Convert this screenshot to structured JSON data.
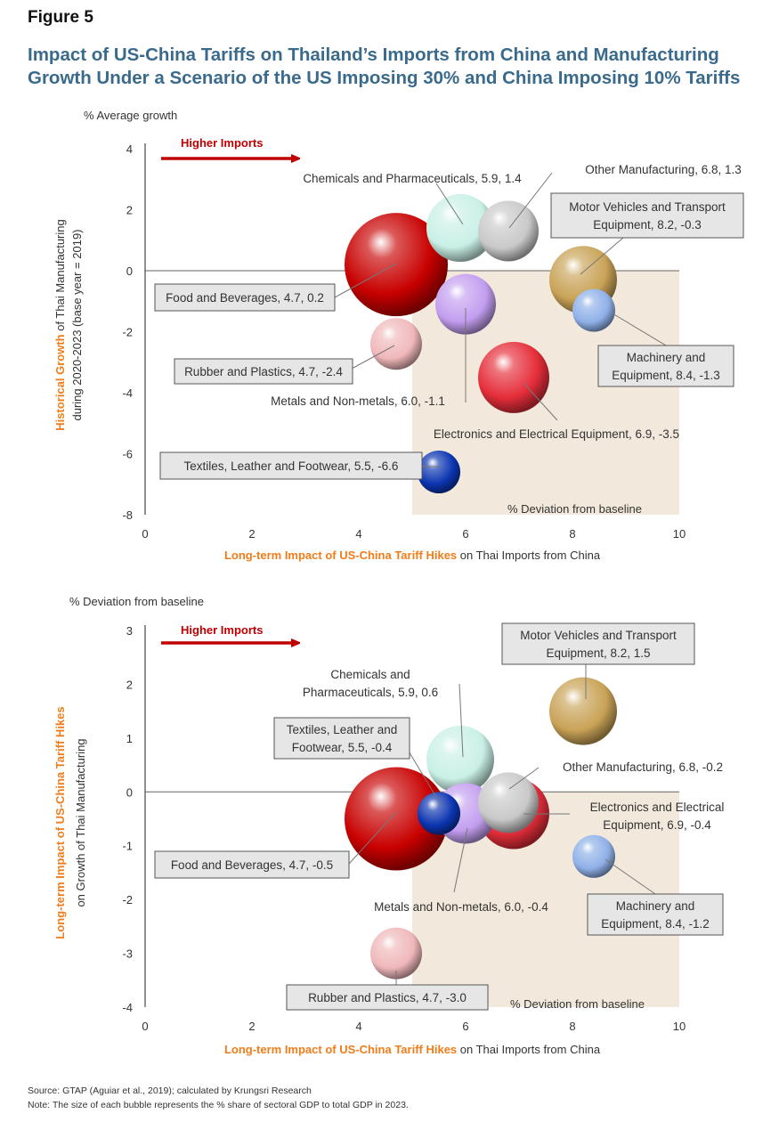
{
  "figure_label": "Figure 5",
  "title_line1": "Impact of US-China Tariffs on Thailand’s Imports from China and Manufacturing",
  "title_line2": "Growth Under a Scenario of the US Imposing 30% and China Imposing 10% Tariffs",
  "colors": {
    "title": "#3a6a8c",
    "orange_label": "#f07d1a",
    "arrow": "#c00000",
    "shade": "#f2e8dc"
  },
  "chart_data": [
    {
      "type": "scatter",
      "subtype": "bubble",
      "unit_label": "% Average growth",
      "arrow_label": "Higher Imports",
      "shade_label": "% Deviation from baseline",
      "xlabel_bold": "Long-term Impact of US-China Tariff Hikes",
      "xlabel_rest": " on Thai Imports from China",
      "ylabel_line1_bold": "Historical Growth",
      "ylabel_line1_rest": " of Thai Manufacturing",
      "ylabel_line2": "during 2020-2023  (base year = 2019)",
      "xlim": [
        0,
        10
      ],
      "ylim": [
        -8,
        4
      ],
      "xticks": [
        "0",
        "2",
        "4",
        "6",
        "8",
        "10"
      ],
      "yticks": [
        "4",
        "2",
        "0",
        "-2",
        "-4",
        "-6",
        "-8"
      ],
      "grid": false,
      "shaded_region": {
        "x": [
          5,
          10
        ],
        "y": [
          -8,
          0
        ]
      },
      "points": [
        {
          "name": "Food and Beverages",
          "x": 4.7,
          "y": 0.2,
          "label": "Food and Beverages, 4.7, 0.2",
          "color": "#c80000",
          "size": 58
        },
        {
          "name": "Chemicals and Pharmaceuticals",
          "x": 5.9,
          "y": 1.4,
          "label": "Chemicals and Pharmaceuticals, 5.9, 1.4",
          "color": "#c9f0e6",
          "size": 38
        },
        {
          "name": "Other Manufacturing",
          "x": 6.8,
          "y": 1.3,
          "label": "Other Manufacturing, 6.8, 1.3",
          "color": "#c9c9c9",
          "size": 34
        },
        {
          "name": "Motor Vehicles and Transport Equipment",
          "x": 8.2,
          "y": -0.3,
          "label": "Motor Vehicles and Transport Equipment, 8.2, -0.3",
          "color": "#c9a357",
          "size": 38
        },
        {
          "name": "Machinery and Equipment",
          "x": 8.4,
          "y": -1.3,
          "label": "Machinery and Equipment, 8.4, -1.3",
          "color": "#8fb0e8",
          "size": 24
        },
        {
          "name": "Metals and Non-metals",
          "x": 6.0,
          "y": -1.1,
          "label": "Metals and Non-metals, 6.0, -1.1",
          "color": "#c39ef0",
          "size": 34
        },
        {
          "name": "Rubber and Plastics",
          "x": 4.7,
          "y": -2.4,
          "label": "Rubber and Plastics, 4.7, -2.4",
          "color": "#f0b8bb",
          "size": 29
        },
        {
          "name": "Electronics and Electrical Equipment",
          "x": 6.9,
          "y": -3.5,
          "label": "Electronics and Electrical Equipment, 6.9, -3.5",
          "color": "#e52e3a",
          "size": 40
        },
        {
          "name": "Textiles, Leather and Footwear",
          "x": 5.5,
          "y": -6.6,
          "label": "Textiles, Leather and Footwear, 5.5, -6.6",
          "color": "#0b34b0",
          "size": 24
        }
      ]
    },
    {
      "type": "scatter",
      "subtype": "bubble",
      "unit_label": "% Deviation from baseline",
      "arrow_label": "Higher Imports",
      "shade_label": "% Deviation from baseline",
      "xlabel_bold": "Long-term Impact of US-China Tariff Hikes",
      "xlabel_rest": " on Thai Imports from China",
      "ylabel_line1_bold": "Long-term Impact of US-China Tariff Hikes",
      "ylabel_line1_rest": "",
      "ylabel_line2": "on Growth of Thai Manufacturing",
      "xlim": [
        0,
        10
      ],
      "ylim": [
        -4,
        3
      ],
      "xticks": [
        "0",
        "2",
        "4",
        "6",
        "8",
        "10"
      ],
      "yticks": [
        "3",
        "2",
        "1",
        "0",
        "-1",
        "-2",
        "-3",
        "-4"
      ],
      "grid": false,
      "shaded_region": {
        "x": [
          5,
          10
        ],
        "y": [
          -4,
          0
        ]
      },
      "points": [
        {
          "name": "Chemicals and Pharmaceuticals",
          "x": 5.9,
          "y": 0.6,
          "label": "Chemicals and Pharmaceuticals, 5.9, 0.6",
          "color": "#c9f0e6",
          "size": 38
        },
        {
          "name": "Electronics and Electrical Equipment",
          "x": 6.9,
          "y": -0.4,
          "label": "Electronics and Electrical Equipment, 6.9, -0.4",
          "color": "#e52e3a",
          "size": 40
        },
        {
          "name": "Metals and Non-metals",
          "x": 6.0,
          "y": -0.4,
          "label": "Metals and Non-metals, 6.0, -0.4",
          "color": "#c39ef0",
          "size": 34
        },
        {
          "name": "Food and Beverages",
          "x": 4.7,
          "y": -0.5,
          "label": "Food and Beverages, 4.7, -0.5",
          "color": "#c80000",
          "size": 58
        },
        {
          "name": "Other Manufacturing",
          "x": 6.8,
          "y": -0.2,
          "label": "Other Manufacturing, 6.8, -0.2",
          "color": "#c9c9c9",
          "size": 34
        },
        {
          "name": "Textiles, Leather and Footwear",
          "x": 5.5,
          "y": -0.4,
          "label": "Textiles, Leather and Footwear, 5.5, -0.4",
          "color": "#0b34b0",
          "size": 24
        },
        {
          "name": "Motor Vehicles and Transport Equipment",
          "x": 8.2,
          "y": 1.5,
          "label": "Motor Vehicles and Transport Equipment, 8.2, 1.5",
          "color": "#c9a357",
          "size": 38
        },
        {
          "name": "Machinery and Equipment",
          "x": 8.4,
          "y": -1.2,
          "label": "Machinery and Equipment, 8.4, -1.2",
          "color": "#8fb0e8",
          "size": 24
        },
        {
          "name": "Rubber and Plastics",
          "x": 4.7,
          "y": -3.0,
          "label": "Rubber and Plastics, 4.7, -3.0",
          "color": "#f0b8bb",
          "size": 29
        }
      ]
    }
  ],
  "source_note": "Source: GTAP (Aguiar et al., 2019); calculated by Krungsri Research",
  "size_note": "Note: The size of each bubble represents the % share of sectoral GDP to total GDP in 2023."
}
